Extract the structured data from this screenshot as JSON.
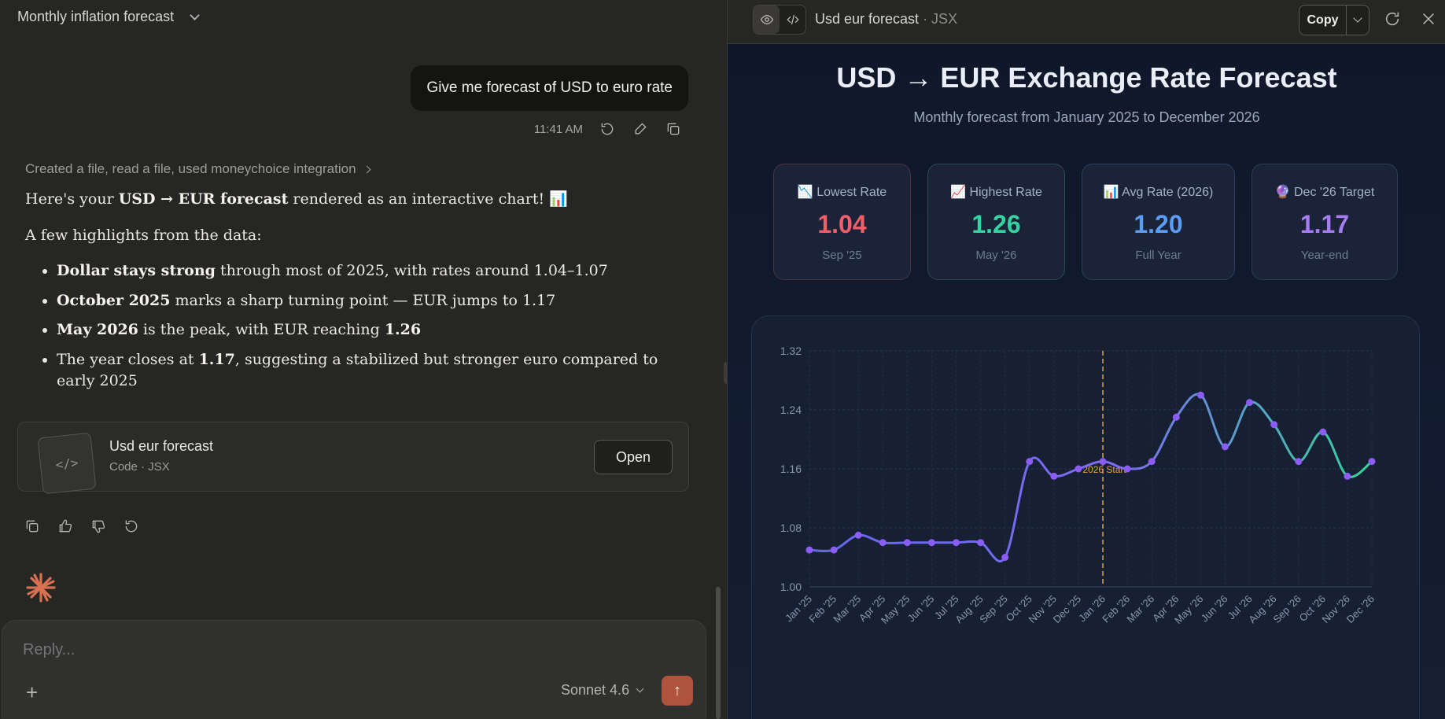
{
  "conversation": {
    "title": "Monthly inflation forecast",
    "user_message": "Give me forecast of USD to euro rate",
    "time": "11:41 AM",
    "tools_used": "Created a file, read a file, used moneychoice integration",
    "intro_pre": "Here's your ",
    "intro_bold": "USD → EUR forecast",
    "intro_post": " rendered as an interactive chart! 📊",
    "highlights_title": "A few highlights from the data:",
    "bullets": [
      {
        "bold": "Dollar stays strong",
        "rest": " through most of 2025, with rates around 1.04–1.07"
      },
      {
        "bold": "October 2025",
        "rest": " marks a sharp turning point — EUR jumps to 1.17"
      },
      {
        "bold": "May 2026",
        "rest": " is the peak, with EUR reaching ",
        "bold2": "1.26"
      },
      {
        "pre": "The year closes at ",
        "bold": "1.17",
        "rest": ", suggesting a stabilized but stronger euro compared to early 2025"
      }
    ],
    "artifact": {
      "name": "Usd eur forecast",
      "type": "Code · JSX",
      "open_label": "Open",
      "thumb_glyph": "</>"
    },
    "reply_placeholder": "Reply...",
    "model": "Sonnet 4.6"
  },
  "artifact_panel": {
    "title": "Usd eur forecast",
    "subtitle": " · JSX",
    "copy_label": "Copy"
  },
  "page": {
    "title": "USD → EUR Exchange Rate Forecast",
    "subtitle": "Monthly forecast from January 2025 to December 2026",
    "stats": [
      {
        "emoji": "📉",
        "label": "Lowest Rate",
        "value": "1.04",
        "foot": "Sep '25",
        "color": "#f25d68",
        "border": "#4a3342"
      },
      {
        "emoji": "📈",
        "label": "Highest Rate",
        "value": "1.26",
        "foot": "May '26",
        "color": "#34d3a0",
        "border": "#2d4a52"
      },
      {
        "emoji": "📊",
        "label": "Avg Rate (2026)",
        "value": "1.20",
        "foot": "Full Year",
        "color": "#5b9cf5",
        "border": "#2d3f5e"
      },
      {
        "emoji": "🔮",
        "label": "Dec '26 Target",
        "value": "1.17",
        "foot": "Year-end",
        "color": "#a77cf2",
        "border": "#2f3b55"
      }
    ]
  },
  "chart_data": {
    "type": "line",
    "categories": [
      "Jan '25",
      "Feb '25",
      "Mar '25",
      "Apr '25",
      "May '25",
      "Jun '25",
      "Jul '25",
      "Aug '25",
      "Sep '25",
      "Oct '25",
      "Nov '25",
      "Dec '25",
      "Jan '26",
      "Feb '26",
      "Mar '26",
      "Apr '26",
      "May '26",
      "Jun '26",
      "Jul '26",
      "Aug '26",
      "Sep '26",
      "Oct '26",
      "Nov '26",
      "Dec '26"
    ],
    "values": [
      1.05,
      1.05,
      1.07,
      1.06,
      1.06,
      1.06,
      1.06,
      1.06,
      1.04,
      1.17,
      1.15,
      1.16,
      1.17,
      1.16,
      1.17,
      1.23,
      1.26,
      1.19,
      1.25,
      1.22,
      1.17,
      1.21,
      1.15,
      1.17
    ],
    "yticks": [
      1.0,
      1.08,
      1.16,
      1.24,
      1.32
    ],
    "ylim": [
      1.0,
      1.32
    ],
    "reference_line": {
      "x": "Jan '26",
      "label": "2026 Start",
      "color": "#e0a53a"
    },
    "grid": true,
    "colors": {
      "line_start": "#6366f1",
      "line_end": "#34d399",
      "point": "#8b5cf6"
    }
  }
}
